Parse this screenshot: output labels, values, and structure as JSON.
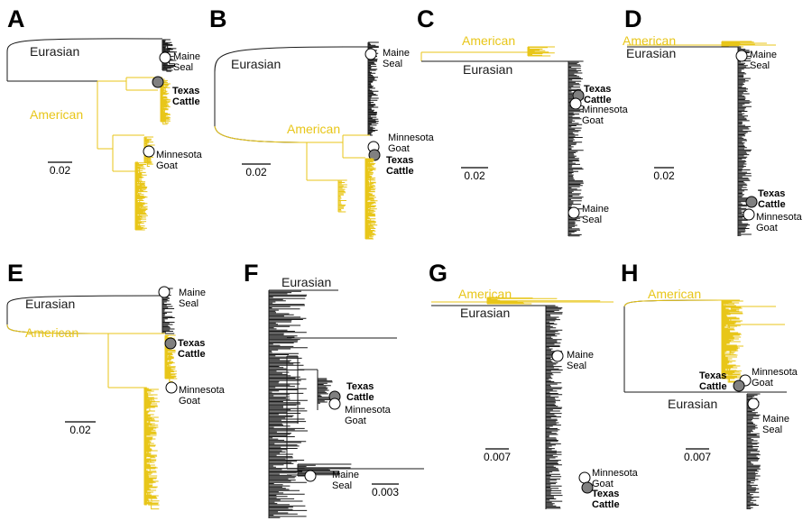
{
  "colors": {
    "american": "#e8c619",
    "eurasian": "#1a1a1a",
    "marker_open": "#ffffff",
    "marker_filled": "#808080"
  },
  "panels": [
    {
      "id": "A",
      "scale": "0.02",
      "clades": {
        "eurasian": "Eurasian",
        "american": "American"
      },
      "samples": [
        {
          "name": "Maine",
          "sub": "Seal",
          "filled": false
        },
        {
          "name": "Texas",
          "sub": "Cattle",
          "filled": true,
          "bold": true
        },
        {
          "name": "Minnesota",
          "sub": "Goat",
          "filled": false
        }
      ]
    },
    {
      "id": "B",
      "scale": "0.02",
      "clades": {
        "eurasian": "Eurasian",
        "american": "American"
      },
      "samples": [
        {
          "name": "Maine",
          "sub": "Seal",
          "filled": false
        },
        {
          "name": "Minnesota",
          "sub": "Goat",
          "filled": false
        },
        {
          "name": "Texas",
          "sub": "Cattle",
          "filled": true,
          "bold": true
        }
      ]
    },
    {
      "id": "C",
      "scale": "0.02",
      "clades": {
        "american": "American",
        "eurasian": "Eurasian"
      },
      "samples": [
        {
          "name": "Texas",
          "sub": "Cattle",
          "filled": true,
          "bold": true
        },
        {
          "name": "Minnesota",
          "sub": "Goat",
          "filled": false
        },
        {
          "name": "Maine",
          "sub": "Seal",
          "filled": false
        }
      ]
    },
    {
      "id": "D",
      "scale": "0.02",
      "clades": {
        "american": "American",
        "eurasian": "Eurasian"
      },
      "samples": [
        {
          "name": "Maine",
          "sub": "Seal",
          "filled": false
        },
        {
          "name": "Texas",
          "sub": "Cattle",
          "filled": true,
          "bold": true
        },
        {
          "name": "Minnesota",
          "sub": "Goat",
          "filled": false
        }
      ]
    },
    {
      "id": "E",
      "scale": "0.02",
      "clades": {
        "eurasian": "Eurasian",
        "american": "American"
      },
      "samples": [
        {
          "name": "Maine",
          "sub": "Seal",
          "filled": false
        },
        {
          "name": "Texas",
          "sub": "Cattle",
          "filled": true,
          "bold": true
        },
        {
          "name": "Minnesota",
          "sub": "Goat",
          "filled": false
        }
      ]
    },
    {
      "id": "F",
      "scale": "0.003",
      "clades": {
        "eurasian": "Eurasian"
      },
      "samples": [
        {
          "name": "Texas",
          "sub": "Cattle",
          "filled": true,
          "bold": true
        },
        {
          "name": "Minnesota",
          "sub": "Goat",
          "filled": false
        },
        {
          "name": "Maine",
          "sub": "Seal",
          "filled": false
        }
      ]
    },
    {
      "id": "G",
      "scale": "0.007",
      "clades": {
        "american": "American",
        "eurasian": "Eurasian"
      },
      "samples": [
        {
          "name": "Maine",
          "sub": "Seal",
          "filled": false
        },
        {
          "name": "Minnesota",
          "sub": "Goat",
          "filled": false
        },
        {
          "name": "Texas",
          "sub": "Cattle",
          "filled": true,
          "bold": true
        }
      ]
    },
    {
      "id": "H",
      "scale": "0.007",
      "clades": {
        "american": "American",
        "eurasian": "Eurasian"
      },
      "samples": [
        {
          "name": "Minnesota",
          "sub": "Goat",
          "filled": false
        },
        {
          "name": "Texas",
          "sub": "Cattle",
          "filled": true,
          "bold": true
        },
        {
          "name": "Maine",
          "sub": "Seal",
          "filled": false
        }
      ]
    }
  ]
}
